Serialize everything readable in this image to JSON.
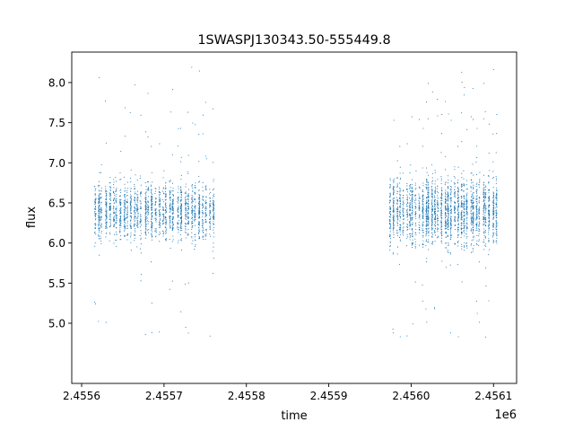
{
  "chart_data": {
    "type": "scatter",
    "title": "1SWASPJ130343.50-555449.8",
    "xlabel": "time",
    "ylabel": "flux",
    "x_offset_label": "1e6",
    "xlim": [
      2.455588,
      2.456128
    ],
    "ylim": [
      4.25,
      8.38
    ],
    "x_ticks": [
      2.4556,
      2.4557,
      2.4558,
      2.4559,
      2.456,
      2.4561
    ],
    "x_tick_labels": [
      "2.4556",
      "2.4557",
      "2.4558",
      "2.4559",
      "2.4560",
      "2.4561"
    ],
    "y_ticks": [
      5.0,
      5.5,
      6.0,
      6.5,
      7.0,
      7.5,
      8.0
    ],
    "y_tick_labels": [
      "5.0",
      "5.5",
      "6.0",
      "6.5",
      "7.0",
      "7.5",
      "8.0"
    ],
    "grid": false,
    "legend": "none",
    "marker_color": "#1f77b4",
    "series": [
      {
        "segments": [
          {
            "x_range": [
              2.455614,
              2.455762
            ],
            "y_center": 6.4,
            "y_spread": 0.35,
            "outlier_range": [
              4.8,
              8.2
            ]
          },
          {
            "x_range": [
              2.455973,
              2.456105
            ],
            "y_center": 6.4,
            "y_spread": 0.4,
            "outlier_range": [
              4.75,
              8.22
            ]
          }
        ]
      }
    ]
  }
}
